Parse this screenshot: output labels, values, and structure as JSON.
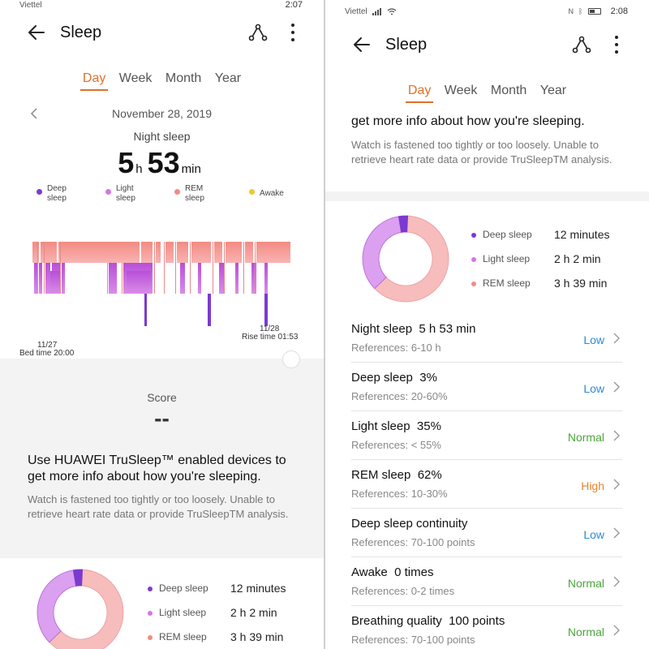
{
  "status_left": {
    "carrier": "Viettel",
    "time": "2:07"
  },
  "status_right": {
    "carrier": "Viettel",
    "time": "2:08",
    "icons": [
      "nfc-icon",
      "bluetooth-icon",
      "battery-icon"
    ]
  },
  "header": {
    "title": "Sleep",
    "share_icon": "share-icon",
    "more_icon": "more-vertical-icon"
  },
  "tabs": [
    {
      "label": "Day",
      "active": true
    },
    {
      "label": "Week",
      "active": false
    },
    {
      "label": "Month",
      "active": false
    },
    {
      "label": "Year",
      "active": false
    }
  ],
  "day": {
    "date": "November 28, 2019",
    "night_label": "Night sleep",
    "hours": "5",
    "hours_unit": "h",
    "minutes": "53",
    "minutes_unit": "min"
  },
  "legend": [
    {
      "label_line1": "Deep",
      "label_line2": "sleep",
      "color": "#7b3ad0"
    },
    {
      "label_line1": "Light",
      "label_line2": "sleep",
      "color": "#d774e8"
    },
    {
      "label_line1": "REM",
      "label_line2": "sleep",
      "color": "#f28b82"
    },
    {
      "label_line1": "Awake",
      "label_line2": "",
      "color": "#f2c531"
    }
  ],
  "hypnogram": {
    "start_date": "11/27",
    "bed_time": "Bed time 20:00",
    "end_date": "11/28",
    "rise_time": "Rise time 01:53"
  },
  "score": {
    "label": "Score",
    "value": "--"
  },
  "promo": {
    "headline_line1": "Use HUAWEI TruSleep™ enabled devices to",
    "headline_line2": "get more info about how you're sleeping.",
    "note": "Watch is fastened too tightly or too loosely. Unable to retrieve heart rate data or provide TruSleepTM analysis."
  },
  "donut": {
    "items": [
      {
        "label": "Deep sleep",
        "value": "12 minutes",
        "minutes": 12,
        "color": "#7b3ad0"
      },
      {
        "label": "Light sleep",
        "value": "2 h 2 min",
        "minutes": 122,
        "color": "#dba0ef"
      },
      {
        "label": "REM sleep",
        "value": "3 h 39 min",
        "minutes": 219,
        "color": "#f7bcbc"
      }
    ]
  },
  "metrics": [
    {
      "title": "Night sleep",
      "value": "5 h 53 min",
      "ref": "References: 6-10 h",
      "status": "Low",
      "level": "low"
    },
    {
      "title": "Deep sleep",
      "value": "3%",
      "ref": "References: 20-60%",
      "status": "Low",
      "level": "low"
    },
    {
      "title": "Light sleep",
      "value": "35%",
      "ref": "References: < 55%",
      "status": "Normal",
      "level": "normal"
    },
    {
      "title": "REM sleep",
      "value": "62%",
      "ref": "References: 10-30%",
      "status": "High",
      "level": "high"
    },
    {
      "title": "Deep sleep continuity",
      "value": "",
      "ref": "References: 70-100 points",
      "status": "Low",
      "level": "low"
    },
    {
      "title": "Awake",
      "value": "0 times",
      "ref": "References: 0-2 times",
      "status": "Normal",
      "level": "normal"
    },
    {
      "title": "Breathing quality",
      "value": "100 points",
      "ref": "References: 70-100 points",
      "status": "Normal",
      "level": "normal"
    }
  ],
  "colors": {
    "accent": "#e0702a",
    "low": "#2b8ad6",
    "normal": "#4aa63a",
    "high": "#e5852a"
  }
}
